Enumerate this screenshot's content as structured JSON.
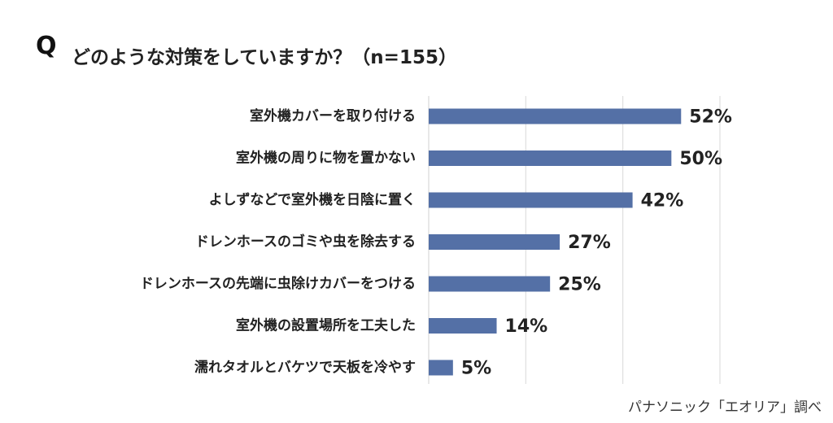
{
  "header": {
    "q_mark": "Q",
    "question": "どのような対策をしていますか？（n=155）"
  },
  "source": "パナソニック「エオリア」調べ",
  "colors": {
    "bar": "#5470a6",
    "grid": "#d9d9d9",
    "text": "#222222"
  },
  "chart_data": {
    "type": "bar",
    "orientation": "horizontal",
    "categories": [
      "室外機カバーを取り付ける",
      "室外機の周りに物を置かない",
      "よしずなどで室外機を日陰に置く",
      "ドレンホースのゴミや虫を除去する",
      "ドレンホースの先端に虫除けカバーをつける",
      "室外機の設置場所を工夫した",
      "濡れタオルとバケツで天板を冷やす"
    ],
    "values": [
      52,
      50,
      42,
      27,
      25,
      14,
      5
    ],
    "value_labels": [
      "52%",
      "50%",
      "42%",
      "27%",
      "25%",
      "14%",
      "5%"
    ],
    "xlim": [
      0,
      60
    ],
    "grid": true,
    "legend": "none"
  }
}
